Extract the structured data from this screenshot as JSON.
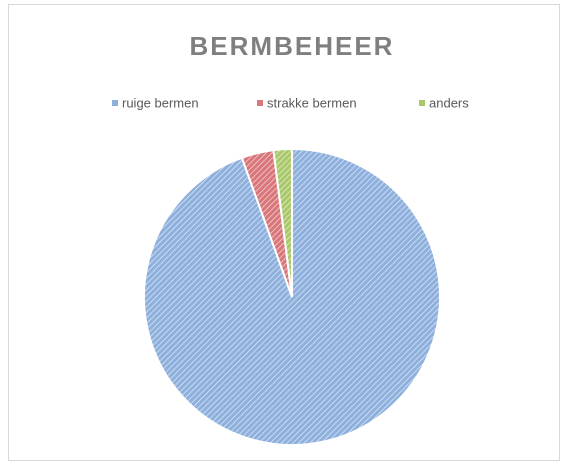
{
  "chart_data": {
    "type": "pie",
    "title": "BERMBEHEER",
    "categories": [
      "ruige bermen",
      "strakke bermen",
      "anders"
    ],
    "values": [
      94.5,
      3.5,
      2
    ],
    "colors": [
      "#8eb0dd",
      "#d9767a",
      "#a8c86a"
    ],
    "legend": "top"
  }
}
